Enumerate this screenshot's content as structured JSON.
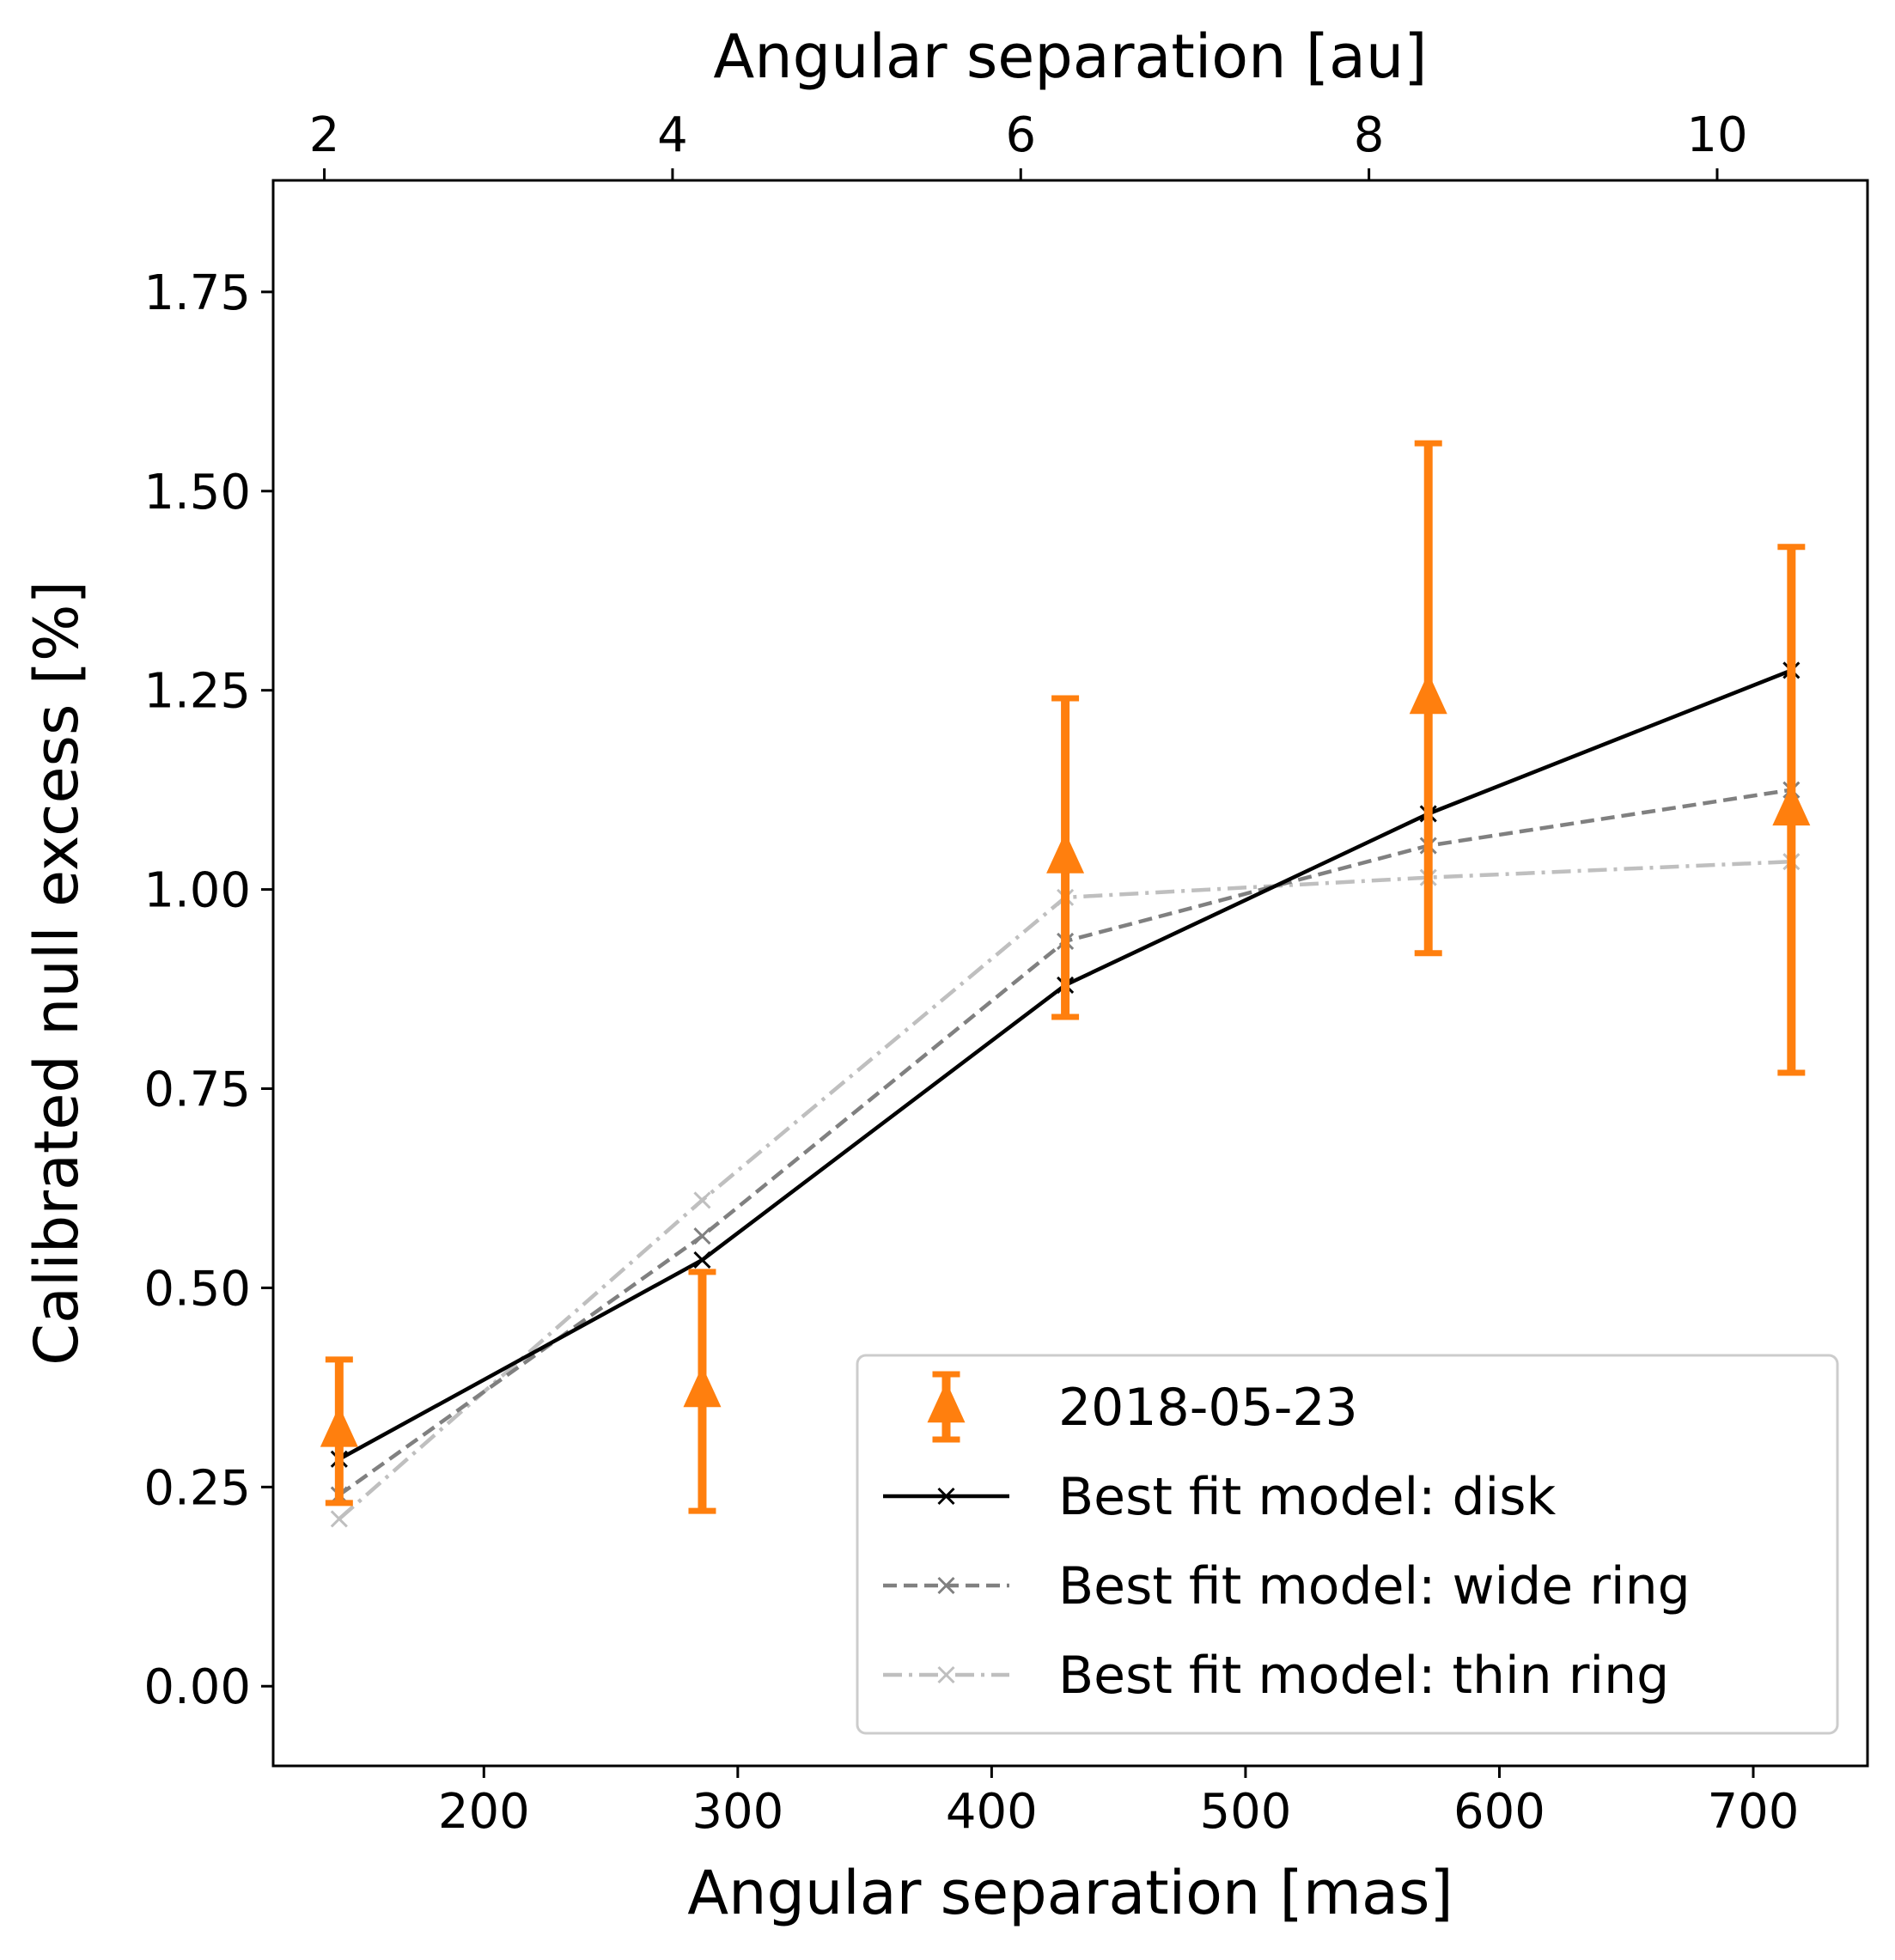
{
  "chart_data": {
    "type": "scatter",
    "xlabel": "Angular separation [mas]",
    "x2label": "Angular separation [au]",
    "ylabel": "Calibrated null excess [%]",
    "xlim": [
      117,
      745
    ],
    "ylim": [
      -0.1,
      1.89
    ],
    "x2_scale_au_per_mas": 0.014582,
    "x_ticks": [
      200,
      300,
      400,
      500,
      600,
      700
    ],
    "x_tick_labels": [
      "200",
      "300",
      "400",
      "500",
      "600",
      "700"
    ],
    "x2_ticks": [
      2,
      4,
      6,
      8,
      10
    ],
    "x2_tick_labels": [
      "2",
      "4",
      "6",
      "8",
      "10"
    ],
    "y_ticks": [
      0,
      0.25,
      0.5,
      0.75,
      1.0,
      1.25,
      1.5,
      1.75
    ],
    "y_tick_labels": [
      "0.00",
      "0.25",
      "0.50",
      "0.75",
      "1.00",
      "1.25",
      "1.50",
      "1.75"
    ],
    "grid": false,
    "legend_position": "bottom-right",
    "measurements": {
      "name": "2018-05-23",
      "color": "#ff7f0e",
      "x": [
        143,
        286,
        429,
        572,
        715
      ],
      "y": [
        0.32,
        0.37,
        1.04,
        1.24,
        1.1
      ],
      "err_low": [
        0.09,
        0.15,
        0.2,
        0.32,
        0.33
      ],
      "err_high": [
        0.09,
        0.15,
        0.2,
        0.32,
        0.33
      ]
    },
    "series": [
      {
        "name": "Best fit model: disk",
        "color": "#000000",
        "dash": "solid",
        "x": [
          143,
          286,
          429,
          572,
          715
        ],
        "y": [
          0.285,
          0.535,
          0.88,
          1.095,
          1.275
        ]
      },
      {
        "name": "Best fit model: wide ring",
        "color": "#808080",
        "dash": "dashed",
        "x": [
          143,
          286,
          429,
          572,
          715
        ],
        "y": [
          0.24,
          0.565,
          0.935,
          1.055,
          1.125
        ]
      },
      {
        "name": "Best fit model: thin ring",
        "color": "#bfbfbf",
        "dash": "dashdot",
        "x": [
          143,
          286,
          429,
          572,
          715
        ],
        "y": [
          0.21,
          0.61,
          0.99,
          1.015,
          1.035
        ]
      }
    ]
  }
}
